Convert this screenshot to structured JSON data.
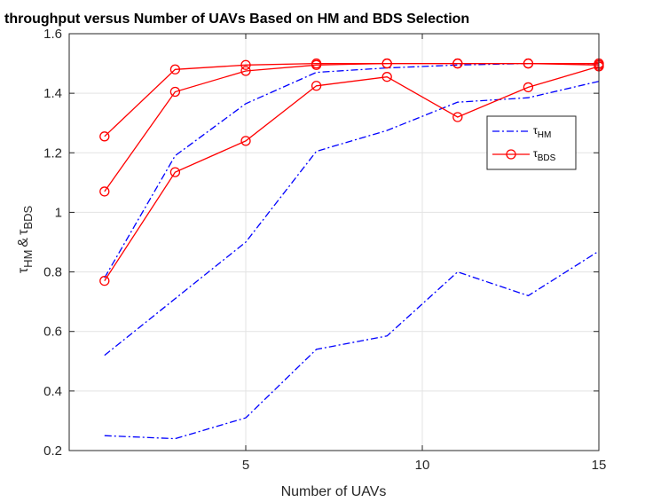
{
  "chart_data": {
    "type": "line",
    "title": "throughput versus Number of UAVs Based on HM and BDS Selection",
    "xlabel": "Number of UAVs",
    "ylabel_symbol": "τ",
    "ylabel_sub1": "HM",
    "ylabel_amp": "&",
    "ylabel_sub2": "BDS",
    "xlim": [
      0,
      15
    ],
    "ylim": [
      0.2,
      1.6
    ],
    "xticks": [
      5,
      10,
      15
    ],
    "xtick_labels": [
      "5",
      "10",
      "15"
    ],
    "yticks": [
      0.2,
      0.4,
      0.6,
      0.8,
      1.0,
      1.2,
      1.4,
      1.6
    ],
    "ytick_labels": [
      "0.2",
      "0.4",
      "0.6",
      "0.8",
      "1",
      "1.2",
      "1.4",
      "1.6"
    ],
    "grid": true,
    "legend_position": "right",
    "legend": [
      {
        "symbol": "τ",
        "sub": "HM",
        "color": "#0000ff",
        "style": "dashdot",
        "marker": "none"
      },
      {
        "symbol": "τ",
        "sub": "BDS",
        "color": "#ff0000",
        "style": "solid",
        "marker": "circle"
      }
    ],
    "series": [
      {
        "group": "HM",
        "color": "#0000ff",
        "style": "dashdot",
        "marker": "none",
        "x": [
          1,
          3,
          5,
          7,
          9,
          11,
          13,
          15
        ],
        "y": [
          0.25,
          0.24,
          0.31,
          0.54,
          0.585,
          0.8,
          0.72,
          0.87
        ]
      },
      {
        "group": "HM",
        "color": "#0000ff",
        "style": "dashdot",
        "marker": "none",
        "x": [
          1,
          3,
          5,
          7,
          9,
          11,
          13,
          15
        ],
        "y": [
          0.52,
          0.71,
          0.9,
          1.205,
          1.275,
          1.37,
          1.385,
          1.44
        ]
      },
      {
        "group": "HM",
        "color": "#0000ff",
        "style": "dashdot",
        "marker": "none",
        "x": [
          1,
          3,
          5,
          7,
          9,
          11,
          13,
          15
        ],
        "y": [
          0.78,
          1.19,
          1.365,
          1.47,
          1.485,
          1.495,
          1.5,
          1.5
        ]
      },
      {
        "group": "BDS",
        "color": "#ff0000",
        "style": "solid",
        "marker": "circle",
        "x": [
          1,
          3,
          5,
          7,
          9,
          11,
          13,
          15
        ],
        "y": [
          0.77,
          1.135,
          1.24,
          1.425,
          1.455,
          1.32,
          1.42,
          1.49
        ]
      },
      {
        "group": "BDS",
        "color": "#ff0000",
        "style": "solid",
        "marker": "circle",
        "x": [
          1,
          3,
          5,
          7,
          9,
          11,
          13,
          15
        ],
        "y": [
          1.07,
          1.405,
          1.475,
          1.495,
          1.5,
          1.5,
          1.5,
          1.495
        ]
      },
      {
        "group": "BDS",
        "color": "#ff0000",
        "style": "solid",
        "marker": "circle",
        "x": [
          1,
          3,
          5,
          7,
          9,
          11,
          13,
          15
        ],
        "y": [
          1.255,
          1.48,
          1.495,
          1.5,
          1.5,
          1.5,
          1.5,
          1.5
        ]
      }
    ]
  }
}
